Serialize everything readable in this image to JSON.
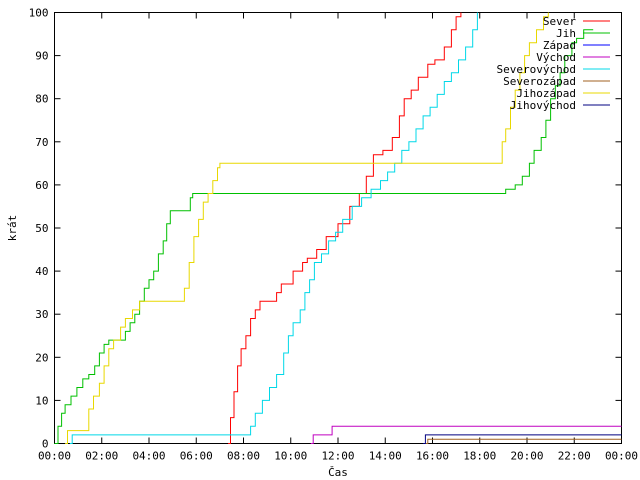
{
  "chart_data": {
    "type": "line",
    "title": "",
    "xlabel": "Čas",
    "ylabel": "krát",
    "x_unit": "hours",
    "xlim": [
      0,
      24
    ],
    "ylim": [
      0,
      100
    ],
    "x_ticks": [
      {
        "value": 0,
        "label": "00:00"
      },
      {
        "value": 2,
        "label": "02:00"
      },
      {
        "value": 4,
        "label": "04:00"
      },
      {
        "value": 6,
        "label": "06:00"
      },
      {
        "value": 8,
        "label": "08:00"
      },
      {
        "value": 10,
        "label": "10:00"
      },
      {
        "value": 12,
        "label": "12:00"
      },
      {
        "value": 14,
        "label": "14:00"
      },
      {
        "value": 16,
        "label": "16:00"
      },
      {
        "value": 18,
        "label": "18:00"
      },
      {
        "value": 20,
        "label": "20:00"
      },
      {
        "value": 22,
        "label": "22:00"
      },
      {
        "value": 24,
        "label": "00:00"
      }
    ],
    "y_ticks": [
      0,
      10,
      20,
      30,
      40,
      50,
      60,
      70,
      80,
      90,
      100
    ],
    "grid": false,
    "legend_position": "top-right",
    "series": [
      {
        "name": "Sever",
        "color": "#ff0000",
        "points": [
          [
            7.35,
            0
          ],
          [
            7.45,
            6
          ],
          [
            7.6,
            12
          ],
          [
            7.75,
            18
          ],
          [
            7.9,
            22
          ],
          [
            8.1,
            25
          ],
          [
            8.3,
            29
          ],
          [
            8.5,
            31
          ],
          [
            8.7,
            33
          ],
          [
            9.2,
            33
          ],
          [
            9.4,
            35
          ],
          [
            9.6,
            37
          ],
          [
            10.1,
            40
          ],
          [
            10.5,
            42
          ],
          [
            10.7,
            43
          ],
          [
            11.1,
            45
          ],
          [
            11.5,
            48
          ],
          [
            12.0,
            51
          ],
          [
            12.5,
            55
          ],
          [
            12.9,
            58
          ],
          [
            13.2,
            62
          ],
          [
            13.5,
            67
          ],
          [
            13.9,
            68
          ],
          [
            14.3,
            71
          ],
          [
            14.6,
            76
          ],
          [
            14.8,
            80
          ],
          [
            15.1,
            82
          ],
          [
            15.4,
            85
          ],
          [
            15.8,
            88
          ],
          [
            16.1,
            89
          ],
          [
            16.5,
            92
          ],
          [
            16.8,
            96
          ],
          [
            17.0,
            99
          ],
          [
            17.2,
            100
          ]
        ]
      },
      {
        "name": "Jih",
        "color": "#00c000",
        "points": [
          [
            0,
            0
          ],
          [
            0.15,
            4
          ],
          [
            0.3,
            7
          ],
          [
            0.45,
            9
          ],
          [
            0.7,
            11
          ],
          [
            0.95,
            13
          ],
          [
            1.2,
            15
          ],
          [
            1.45,
            16
          ],
          [
            1.7,
            18
          ],
          [
            1.9,
            21
          ],
          [
            2.1,
            23
          ],
          [
            2.3,
            24
          ],
          [
            2.8,
            24
          ],
          [
            3.0,
            26
          ],
          [
            3.2,
            28
          ],
          [
            3.4,
            30
          ],
          [
            3.6,
            33
          ],
          [
            3.8,
            36
          ],
          [
            4.0,
            38
          ],
          [
            4.2,
            40
          ],
          [
            4.4,
            44
          ],
          [
            4.6,
            47
          ],
          [
            4.75,
            51
          ],
          [
            4.9,
            54
          ],
          [
            5.7,
            54
          ],
          [
            5.75,
            57
          ],
          [
            5.85,
            58
          ],
          [
            18.9,
            58
          ],
          [
            19.1,
            59
          ],
          [
            19.5,
            60
          ],
          [
            19.8,
            62
          ],
          [
            20.1,
            65
          ],
          [
            20.3,
            68
          ],
          [
            20.6,
            71
          ],
          [
            20.8,
            75
          ],
          [
            21.0,
            80
          ],
          [
            21.2,
            83
          ],
          [
            21.4,
            86
          ],
          [
            21.6,
            90
          ],
          [
            21.9,
            93
          ],
          [
            22.1,
            94
          ],
          [
            22.4,
            96
          ],
          [
            22.8,
            96
          ]
        ]
      },
      {
        "name": "Západ",
        "color": "#0000ff",
        "points": []
      },
      {
        "name": "Východ",
        "color": "#c000c0",
        "points": [
          [
            10.85,
            0
          ],
          [
            10.95,
            2
          ],
          [
            11.6,
            2
          ],
          [
            11.75,
            4
          ],
          [
            24,
            4
          ]
        ]
      },
      {
        "name": "Severovýchod",
        "color": "#00d8e8",
        "points": [
          [
            0.65,
            0
          ],
          [
            0.75,
            2
          ],
          [
            8.1,
            2
          ],
          [
            8.3,
            4
          ],
          [
            8.5,
            7
          ],
          [
            8.8,
            10
          ],
          [
            9.1,
            13
          ],
          [
            9.4,
            16
          ],
          [
            9.7,
            21
          ],
          [
            9.9,
            25
          ],
          [
            10.1,
            28
          ],
          [
            10.4,
            31
          ],
          [
            10.6,
            35
          ],
          [
            10.8,
            38
          ],
          [
            11.0,
            42
          ],
          [
            11.3,
            44
          ],
          [
            11.6,
            47
          ],
          [
            11.9,
            49
          ],
          [
            12.2,
            52
          ],
          [
            12.6,
            55
          ],
          [
            13.0,
            57
          ],
          [
            13.4,
            59
          ],
          [
            13.8,
            61
          ],
          [
            14.1,
            63
          ],
          [
            14.4,
            65
          ],
          [
            14.7,
            68
          ],
          [
            15.0,
            70
          ],
          [
            15.3,
            73
          ],
          [
            15.6,
            76
          ],
          [
            15.9,
            78
          ],
          [
            16.2,
            81
          ],
          [
            16.5,
            84
          ],
          [
            16.8,
            86
          ],
          [
            17.1,
            89
          ],
          [
            17.4,
            92
          ],
          [
            17.7,
            96
          ],
          [
            17.9,
            100
          ]
        ]
      },
      {
        "name": "Severozápad",
        "color": "#a06020",
        "points": [
          [
            15.7,
            0
          ],
          [
            15.8,
            1
          ],
          [
            24,
            1
          ]
        ]
      },
      {
        "name": "Jihozápad",
        "color": "#e8d800",
        "points": [
          [
            0.45,
            0
          ],
          [
            0.55,
            3
          ],
          [
            1.3,
            3
          ],
          [
            1.45,
            8
          ],
          [
            1.65,
            11
          ],
          [
            1.9,
            14
          ],
          [
            2.1,
            18
          ],
          [
            2.3,
            22
          ],
          [
            2.5,
            24
          ],
          [
            2.8,
            27
          ],
          [
            3.0,
            29
          ],
          [
            3.3,
            31
          ],
          [
            3.6,
            33
          ],
          [
            5.3,
            33
          ],
          [
            5.5,
            36
          ],
          [
            5.7,
            42
          ],
          [
            5.9,
            48
          ],
          [
            6.1,
            52
          ],
          [
            6.3,
            56
          ],
          [
            6.5,
            58
          ],
          [
            6.7,
            61
          ],
          [
            6.9,
            64
          ],
          [
            7.0,
            65
          ],
          [
            18.8,
            65
          ],
          [
            18.95,
            70
          ],
          [
            19.1,
            73
          ],
          [
            19.3,
            78
          ],
          [
            19.5,
            82
          ],
          [
            19.7,
            86
          ],
          [
            19.9,
            90
          ],
          [
            20.1,
            93
          ],
          [
            20.4,
            96
          ],
          [
            20.7,
            99
          ],
          [
            20.9,
            100
          ]
        ]
      },
      {
        "name": "Jihovýchod",
        "color": "#000080",
        "points": [
          [
            15.6,
            0
          ],
          [
            15.7,
            2
          ],
          [
            24,
            2
          ]
        ]
      }
    ]
  }
}
